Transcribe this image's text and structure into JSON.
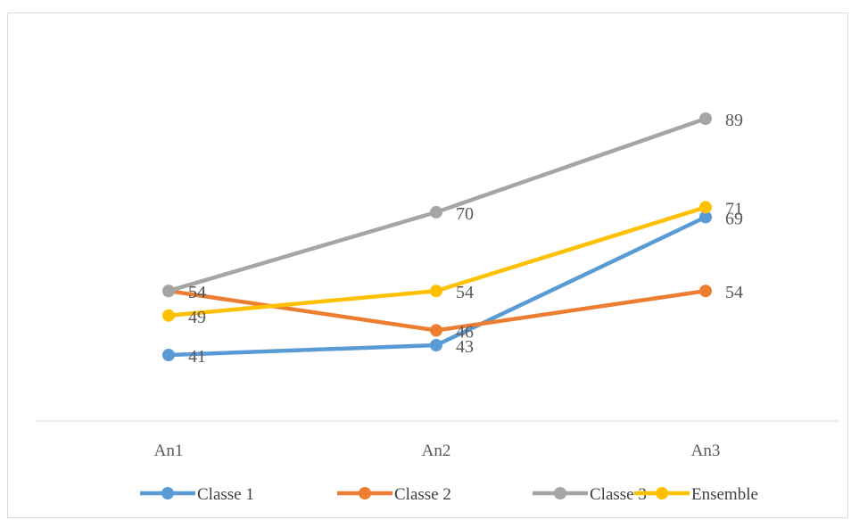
{
  "chart_data": {
    "type": "line",
    "title": "",
    "xlabel": "",
    "ylabel": "",
    "categories": [
      "An1",
      "An2",
      "An3"
    ],
    "ylim": [
      30,
      100
    ],
    "grid": false,
    "legend_position": "bottom",
    "series": [
      {
        "name": "Classe 1",
        "color": "#5b9bd5",
        "values": [
          41,
          43,
          69
        ]
      },
      {
        "name": "Classe 2",
        "color": "#ed7d31",
        "values": [
          54,
          46,
          54
        ]
      },
      {
        "name": "Classe 3",
        "color": "#a5a5a5",
        "values": [
          54,
          70,
          89
        ]
      },
      {
        "name": "Ensemble",
        "color": "#ffc000",
        "values": [
          49,
          54,
          71
        ]
      }
    ]
  }
}
